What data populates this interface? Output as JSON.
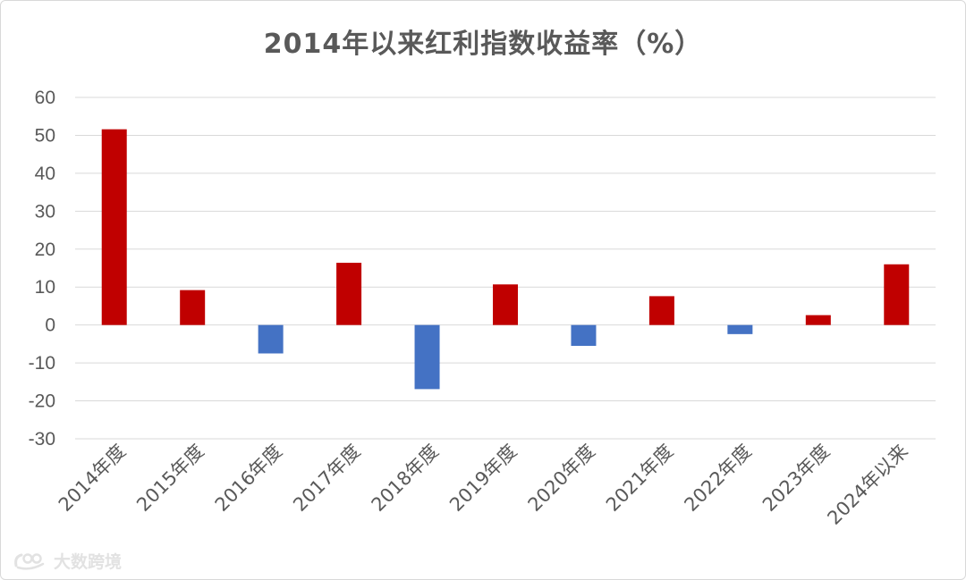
{
  "chart_data": {
    "type": "bar",
    "title": "2014年以来红利指数收益率（%）",
    "categories": [
      "2014年度",
      "2015年度",
      "2016年度",
      "2017年度",
      "2018年度",
      "2019年度",
      "2020年度",
      "2021年度",
      "2022年度",
      "2023年度",
      "2024年以来"
    ],
    "values": [
      51.6,
      9.2,
      -7.5,
      16.4,
      -16.9,
      10.7,
      -5.5,
      7.6,
      -2.4,
      2.6,
      16.0
    ],
    "ylim": [
      -30,
      60
    ],
    "yticks": [
      60,
      50,
      40,
      30,
      20,
      10,
      0,
      -10,
      -20,
      -30
    ],
    "grid": true,
    "legend": "none",
    "colors": {
      "positive": "#c00000",
      "negative": "#4472c4",
      "grid": "#d9d9d9",
      "text": "#595959"
    }
  },
  "watermark": {
    "text": "大数跨境",
    "icon": "logo-icon"
  }
}
